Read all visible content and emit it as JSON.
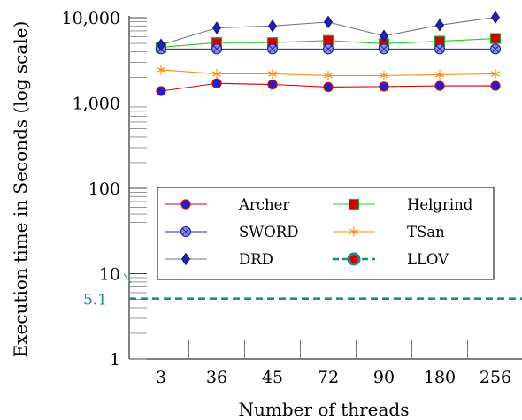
{
  "chart_data": {
    "type": "line",
    "title": "",
    "xlabel": "Number of threads",
    "ylabel": "Execution time in Seconds (log scale)",
    "yscale": "log",
    "ylim": [
      1,
      10000
    ],
    "grid": false,
    "legend_position": "center",
    "categories": [
      "3",
      "36",
      "45",
      "72",
      "90",
      "180",
      "256"
    ],
    "y_ticks": [
      {
        "value": 1,
        "label": "1"
      },
      {
        "value": 10,
        "label": "10"
      },
      {
        "value": 100,
        "label": "100"
      },
      {
        "value": 1000,
        "label": "1,000"
      },
      {
        "value": 10000,
        "label": "10,000"
      }
    ],
    "series": [
      {
        "name": "Archer",
        "color": "#d40000",
        "marker": "circle-blue",
        "values": [
          1380,
          1700,
          1650,
          1540,
          1560,
          1590,
          1590
        ]
      },
      {
        "name": "Helgrind",
        "color": "#22cc22",
        "marker": "square-red",
        "values": [
          4500,
          5100,
          5100,
          5400,
          4950,
          5300,
          5700
        ]
      },
      {
        "name": "SWORD",
        "color": "#1c1ccc",
        "marker": "circle-cross",
        "values": [
          4300,
          4300,
          4300,
          4300,
          4300,
          4300,
          4300
        ]
      },
      {
        "name": "TSan",
        "color": "#ff8c1a",
        "marker": "star",
        "values": [
          2450,
          2200,
          2200,
          2100,
          2100,
          2150,
          2200
        ]
      },
      {
        "name": "DRD",
        "color": "#777777",
        "marker": "diamond-blue",
        "values": [
          4800,
          7600,
          8000,
          8900,
          6100,
          8200,
          10100
        ]
      },
      {
        "name": "LLOV",
        "color": "#1a8c8c",
        "marker": "circle-teal",
        "style": "dashed",
        "constant": 5.1,
        "label": "5.1"
      }
    ]
  }
}
